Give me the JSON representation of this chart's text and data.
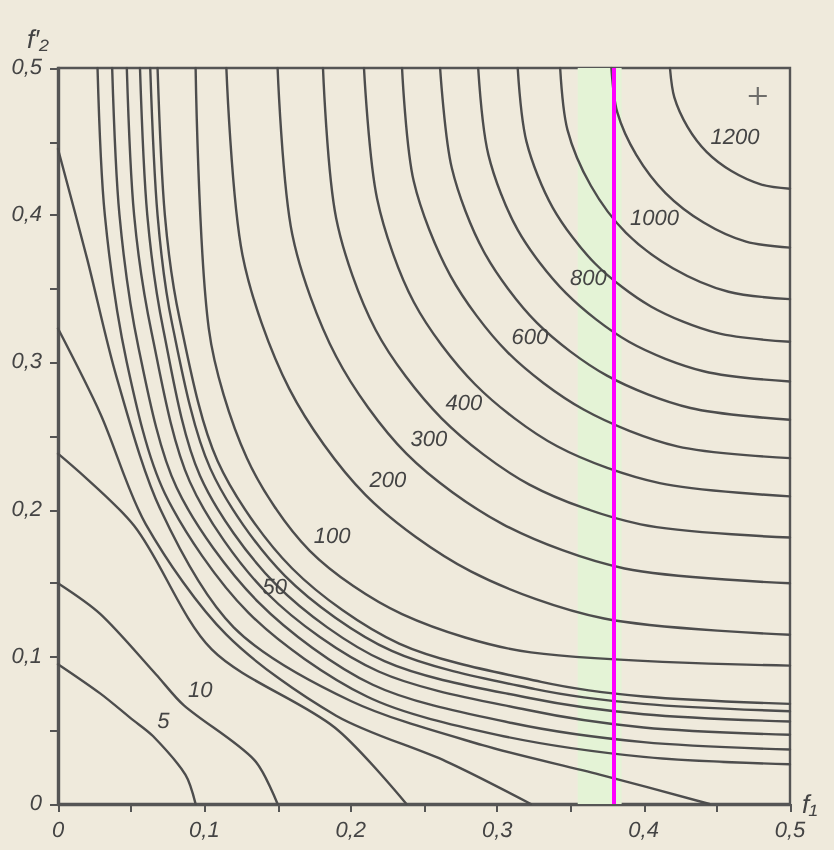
{
  "chart_data": {
    "type": "line",
    "xlabel": "f₁",
    "ylabel": "f′₂",
    "xlim": [
      0,
      0.5
    ],
    "ylim": [
      0,
      0.5
    ],
    "xticks": [
      {
        "value": 0,
        "label": "0"
      },
      {
        "value": 0.05,
        "label": null
      },
      {
        "value": 0.1,
        "label": "0,1"
      },
      {
        "value": 0.15,
        "label": null
      },
      {
        "value": 0.2,
        "label": "0,2"
      },
      {
        "value": 0.25,
        "label": null
      },
      {
        "value": 0.3,
        "label": "0,3"
      },
      {
        "value": 0.35,
        "label": null
      },
      {
        "value": 0.4,
        "label": "0,4"
      },
      {
        "value": 0.45,
        "label": null
      },
      {
        "value": 0.5,
        "label": "0,5"
      }
    ],
    "yticks": [
      {
        "value": 0,
        "label": "0"
      },
      {
        "value": 0.05,
        "label": null
      },
      {
        "value": 0.1,
        "label": "0,1"
      },
      {
        "value": 0.15,
        "label": null
      },
      {
        "value": 0.2,
        "label": "0,2"
      },
      {
        "value": 0.25,
        "label": null
      },
      {
        "value": 0.3,
        "label": "0,3"
      },
      {
        "value": 0.35,
        "label": null
      },
      {
        "value": 0.4,
        "label": "0,4"
      },
      {
        "value": 0.45,
        "label": null
      },
      {
        "value": 0.5,
        "label": "0,5"
      }
    ],
    "marker": "none",
    "line_style": "solid",
    "grid": false,
    "legend": false,
    "series": [
      {
        "name": "5",
        "color": "#4d4d4d",
        "x": [
          0,
          0.029,
          0.05,
          0.065,
          0.087,
          0.094
        ],
        "values": [
          0.095,
          0.075,
          0.058,
          0.046,
          0.02,
          0
        ]
      },
      {
        "name": "10",
        "color": "#4d4d4d",
        "x": [
          0,
          0.029,
          0.067,
          0.086,
          0.134,
          0.15
        ],
        "values": [
          0.15,
          0.129,
          0.088,
          0.067,
          0.03,
          0
        ]
      },
      {
        "color": "#4d4d4d",
        "x": [
          0,
          0.052,
          0.105,
          0.189,
          0.238
        ],
        "values": [
          0.238,
          0.189,
          0.105,
          0.052,
          0
        ]
      },
      {
        "color": "#4d4d4d",
        "x": [
          0,
          0.029,
          0.06,
          0.115,
          0.19,
          0.265,
          0.323
        ],
        "values": [
          0.323,
          0.265,
          0.19,
          0.115,
          0.06,
          0.029,
          0
        ]
      },
      {
        "color": "#4d4d4d",
        "x": [
          0,
          0.02,
          0.04,
          0.07,
          0.12,
          0.2,
          0.29,
          0.37,
          0.445
        ],
        "values": [
          0.445,
          0.37,
          0.29,
          0.2,
          0.12,
          0.07,
          0.04,
          0.02,
          0
        ]
      },
      {
        "color": "#4d4d4d",
        "x": [
          0.027,
          0.032,
          0.047,
          0.073,
          0.13,
          0.211,
          0.3,
          0.4,
          0.5
        ],
        "values": [
          0.5,
          0.4,
          0.3,
          0.211,
          0.13,
          0.073,
          0.047,
          0.032,
          0.027
        ]
      },
      {
        "name": "50",
        "color": "#4d4d4d",
        "x": [
          0.037,
          0.042,
          0.055,
          0.081,
          0.137,
          0.215,
          0.31,
          0.4,
          0.5
        ],
        "values": [
          0.5,
          0.4,
          0.31,
          0.215,
          0.137,
          0.081,
          0.055,
          0.042,
          0.037
        ]
      },
      {
        "color": "#4d4d4d",
        "x": [
          0.047,
          0.052,
          0.064,
          0.09,
          0.143,
          0.219,
          0.32,
          0.4,
          0.5
        ],
        "values": [
          0.5,
          0.4,
          0.32,
          0.219,
          0.143,
          0.09,
          0.064,
          0.052,
          0.047
        ]
      },
      {
        "color": "#4d4d4d",
        "x": [
          0.056,
          0.061,
          0.072,
          0.097,
          0.149,
          0.223,
          0.322,
          0.4,
          0.5
        ],
        "values": [
          0.5,
          0.4,
          0.322,
          0.223,
          0.149,
          0.097,
          0.072,
          0.061,
          0.056
        ]
      },
      {
        "color": "#4d4d4d",
        "x": [
          0.063,
          0.068,
          0.078,
          0.104,
          0.155,
          0.228,
          0.326,
          0.4,
          0.5
        ],
        "values": [
          0.5,
          0.4,
          0.326,
          0.228,
          0.155,
          0.104,
          0.078,
          0.068,
          0.063
        ]
      },
      {
        "color": "#4d4d4d",
        "x": [
          0.068,
          0.073,
          0.083,
          0.109,
          0.16,
          0.233,
          0.33,
          0.4,
          0.5
        ],
        "values": [
          0.5,
          0.4,
          0.33,
          0.233,
          0.16,
          0.109,
          0.083,
          0.073,
          0.068
        ]
      },
      {
        "name": "100",
        "color": "#4d4d4d",
        "x": [
          0.094,
          0.103,
          0.129,
          0.172,
          0.235,
          0.323,
          0.5
        ],
        "values": [
          0.5,
          0.323,
          0.235,
          0.172,
          0.129,
          0.103,
          0.094
        ]
      },
      {
        "name": "200",
        "color": "#4d4d4d",
        "x": [
          0.115,
          0.126,
          0.158,
          0.21,
          0.282,
          0.373,
          0.5
        ],
        "values": [
          0.5,
          0.373,
          0.282,
          0.21,
          0.158,
          0.126,
          0.115
        ]
      },
      {
        "name": "300",
        "color": "#4d4d4d",
        "x": [
          0.15,
          0.16,
          0.19,
          0.238,
          0.304,
          0.387,
          0.5
        ],
        "values": [
          0.5,
          0.387,
          0.304,
          0.238,
          0.19,
          0.16,
          0.15
        ]
      },
      {
        "name": "400",
        "color": "#4d4d4d",
        "x": [
          0.181,
          0.19,
          0.217,
          0.262,
          0.322,
          0.398,
          0.5
        ],
        "values": [
          0.5,
          0.398,
          0.322,
          0.262,
          0.217,
          0.19,
          0.181
        ]
      },
      {
        "color": "#4d4d4d",
        "x": [
          0.209,
          0.218,
          0.243,
          0.285,
          0.341,
          0.411,
          0.5
        ],
        "values": [
          0.5,
          0.411,
          0.341,
          0.285,
          0.243,
          0.218,
          0.209
        ]
      },
      {
        "name": "600",
        "color": "#4d4d4d",
        "x": [
          0.235,
          0.243,
          0.268,
          0.307,
          0.359,
          0.423,
          0.5
        ],
        "values": [
          0.5,
          0.423,
          0.359,
          0.307,
          0.268,
          0.243,
          0.235
        ]
      },
      {
        "color": "#4d4d4d",
        "x": [
          0.261,
          0.269,
          0.291,
          0.327,
          0.375,
          0.432,
          0.5
        ],
        "values": [
          0.5,
          0.432,
          0.375,
          0.327,
          0.291,
          0.269,
          0.261
        ]
      },
      {
        "name": "800",
        "color": "#4d4d4d",
        "x": [
          0.287,
          0.294,
          0.314,
          0.347,
          0.39,
          0.441,
          0.5
        ],
        "values": [
          0.5,
          0.441,
          0.39,
          0.347,
          0.314,
          0.294,
          0.287
        ]
      },
      {
        "color": "#4d4d4d",
        "x": [
          0.314,
          0.32,
          0.338,
          0.367,
          0.405,
          0.45,
          0.5
        ],
        "values": [
          0.5,
          0.45,
          0.405,
          0.367,
          0.338,
          0.32,
          0.314
        ]
      },
      {
        "name": "1000",
        "color": "#4d4d4d",
        "x": [
          0.343,
          0.348,
          0.364,
          0.388,
          0.42,
          0.458,
          0.5
        ],
        "values": [
          0.5,
          0.458,
          0.42,
          0.388,
          0.364,
          0.348,
          0.343
        ]
      },
      {
        "color": "#4d4d4d",
        "x": [
          0.378,
          0.382,
          0.395,
          0.415,
          0.441,
          0.47,
          0.5
        ],
        "values": [
          0.5,
          0.47,
          0.441,
          0.415,
          0.395,
          0.382,
          0.378
        ]
      },
      {
        "name": "1200",
        "color": "#4d4d4d",
        "x": [
          0.418,
          0.421,
          0.43,
          0.443,
          0.46,
          0.48,
          0.5
        ],
        "values": [
          0.5,
          0.48,
          0.46,
          0.443,
          0.43,
          0.421,
          0.418
        ]
      },
      {
        "type": "scatter",
        "marker": "cross",
        "color": "#4d4d4d",
        "x": [
          0.478
        ],
        "values": [
          0.481
        ]
      }
    ],
    "ref_lines": [
      {
        "axis": "x",
        "value": 0.38,
        "color": "#ff00ff",
        "line_style": "solid"
      }
    ],
    "bands": [
      {
        "axis": "x",
        "from": 0.355,
        "to": 0.385,
        "color": "#e4f3d6"
      }
    ]
  }
}
